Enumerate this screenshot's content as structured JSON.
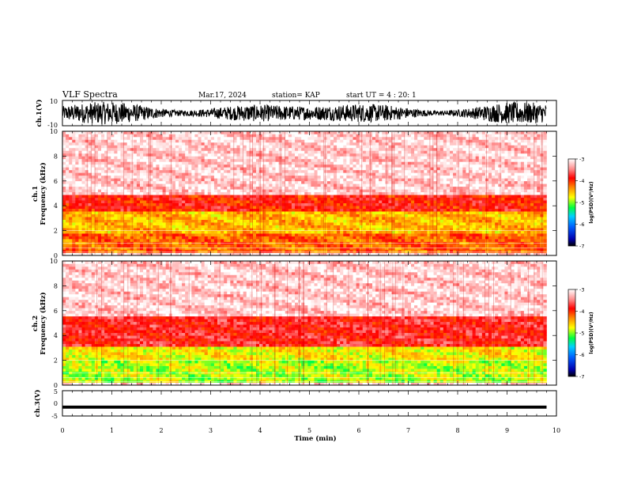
{
  "header": {
    "title": "VLF Spectra",
    "date": "Mar.17, 2024",
    "station": "station= KAP",
    "start": "start  UT =   4 : 20: 1"
  },
  "colors": {
    "spectrogram_low": "#ffffff",
    "spectrogram_mid": "#ff2a1a",
    "spectrogram_high": "#ffff00",
    "trace": "#000000"
  },
  "chart_data": [
    {
      "type": "line",
      "id": "waveform-ch1",
      "ylabel": "ch.1(V)",
      "ylim": [
        -10,
        10
      ],
      "yticks": [
        "10",
        "-10"
      ],
      "xlim": [
        0,
        10
      ],
      "description_values": {
        "envelope_min": -9,
        "envelope_max": 9
      }
    },
    {
      "type": "heatmap",
      "id": "spectrogram-ch1",
      "ylabel": "ch.1",
      "ylabel2": "Frequency  (kHz)",
      "ylim": [
        0,
        10
      ],
      "yticks": [
        "0",
        "2",
        "4",
        "6",
        "8",
        "10"
      ],
      "xlim": [
        0,
        10
      ],
      "data_extent_min": 9.8,
      "colorbar": {
        "label": "log(PSD)(V²/Hz)",
        "range": [
          -7,
          -3
        ],
        "ticks": [
          "-3",
          "-4",
          "-5",
          "-6",
          "-7"
        ]
      },
      "bands": [
        {
          "f_lo": 0.3,
          "f_hi": 1.8,
          "log_psd": -4.2
        },
        {
          "f_lo": 1.8,
          "f_hi": 3.5,
          "log_psd": -4.5
        },
        {
          "f_lo": 3.5,
          "f_hi": 5.0,
          "log_psd": -3.9
        },
        {
          "f_lo": 5.0,
          "f_hi": 10.0,
          "log_psd": -3.2
        }
      ]
    },
    {
      "type": "heatmap",
      "id": "spectrogram-ch2",
      "ylabel": "ch.2",
      "ylabel2": "Frequency  (kHz)",
      "ylim": [
        0,
        10
      ],
      "yticks": [
        "0",
        "2",
        "4",
        "6",
        "8",
        "10"
      ],
      "xlim": [
        0,
        10
      ],
      "data_extent_min": 9.8,
      "colorbar": {
        "label": "log(PSD)(V²/Hz)",
        "range": [
          -7,
          -3
        ],
        "ticks": [
          "-3",
          "-4",
          "-5",
          "-6",
          "-7"
        ]
      },
      "bands": [
        {
          "f_lo": 0.3,
          "f_hi": 2.0,
          "log_psd": -4.9
        },
        {
          "f_lo": 2.0,
          "f_hi": 3.2,
          "log_psd": -4.7
        },
        {
          "f_lo": 3.2,
          "f_hi": 5.5,
          "log_psd": -3.8
        },
        {
          "f_lo": 5.5,
          "f_hi": 10.0,
          "log_psd": -3.2
        }
      ]
    },
    {
      "type": "line",
      "id": "waveform-ch3",
      "ylabel": "ch.3(V)",
      "ylim": [
        -5,
        5
      ],
      "yticks": [
        "5",
        "0",
        "-5"
      ],
      "xlim": [
        0,
        10
      ],
      "xlabel": "Time  (min)",
      "xticks": [
        "0",
        "1",
        "2",
        "3",
        "4",
        "5",
        "6",
        "7",
        "8",
        "9",
        "10"
      ],
      "description_values": {
        "level": -1.5,
        "band_halfwidth": 0.6
      }
    }
  ]
}
